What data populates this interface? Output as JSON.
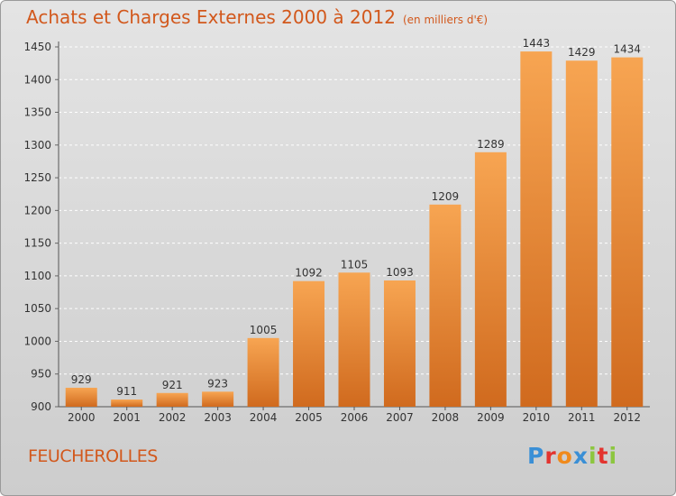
{
  "title": "Achats et Charges Externes 2000 à 2012",
  "unit": "(en milliers d'€)",
  "commune": "FEUCHEROLLES",
  "logo": {
    "text": "Proxiti",
    "letter_colors": [
      "#3a8fd6",
      "#e3342f",
      "#f08a1c",
      "#3a8fd6",
      "#8cc63f",
      "#e3342f",
      "#8cc63f"
    ]
  },
  "chart_data": {
    "type": "bar",
    "title": "Achats et Charges Externes 2000 à 2012",
    "subtitle": "(en milliers d'€)",
    "categories": [
      "2000",
      "2001",
      "2002",
      "2003",
      "2004",
      "2005",
      "2006",
      "2007",
      "2008",
      "2009",
      "2010",
      "2011",
      "2012"
    ],
    "values": [
      929,
      911,
      921,
      923,
      1005,
      1092,
      1105,
      1093,
      1209,
      1289,
      1443,
      1429,
      1434
    ],
    "ylim": [
      900,
      1450
    ],
    "yticks": [
      900,
      950,
      1000,
      1050,
      1100,
      1150,
      1200,
      1250,
      1300,
      1350,
      1400,
      1450
    ],
    "grid": true,
    "bar_color": "#f39c45",
    "bar_color_dark": "#d2691c"
  }
}
